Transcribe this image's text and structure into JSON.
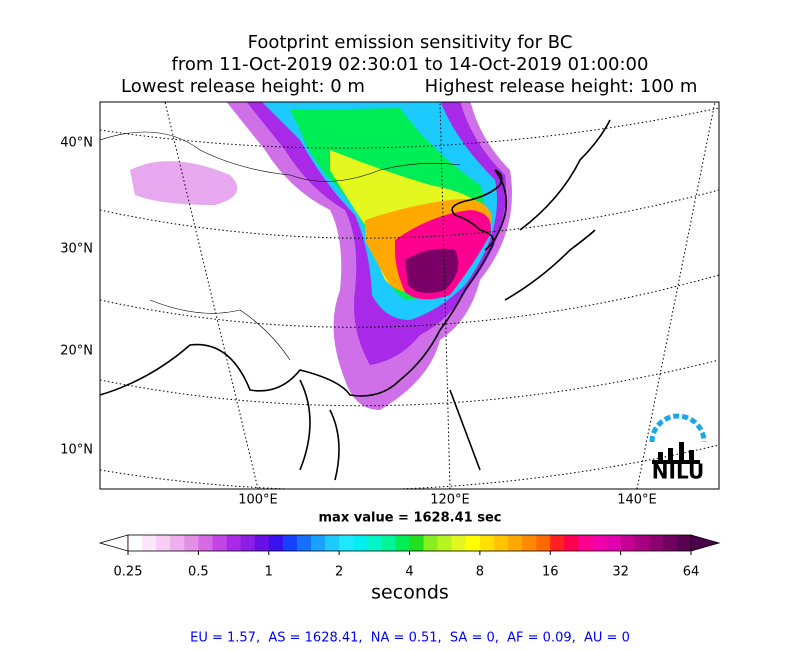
{
  "title": [
    "Footprint emission sensitivity for BC",
    "from 11-Oct-2019 02:30:01 to 14-Oct-2019 01:00:00"
  ],
  "release": {
    "lowest": "Lowest release height: 0 m",
    "highest": "Highest release height: 100 m"
  },
  "map": {
    "lat_labels": [
      "40°N",
      "30°N",
      "20°N",
      "10°N"
    ],
    "lon_labels": [
      "100°E",
      "120°E",
      "140°E"
    ],
    "max_value_label": "max value = 1628.41 sec",
    "logo": "NILU"
  },
  "colorbar": {
    "ticks": [
      0.25,
      0.5,
      1,
      2,
      4,
      8,
      16,
      32,
      64
    ],
    "lim": [
      0.25,
      64
    ],
    "log_scale": true,
    "label": "seconds",
    "colors": [
      "#ffffff",
      "#fde6fb",
      "#f7cdf5",
      "#eeb0ef",
      "#e38fe8",
      "#d66ae4",
      "#c445e6",
      "#a82ae8",
      "#8c1ee8",
      "#6a10e6",
      "#3a10f0",
      "#1440ff",
      "#1670ff",
      "#1aa0ff",
      "#1ccaff",
      "#1ee8ff",
      "#00f0f0",
      "#00f5c8",
      "#00f598",
      "#00ee55",
      "#20e020",
      "#88ee20",
      "#b8f520",
      "#e4f820",
      "#ffff00",
      "#ffe000",
      "#ffc400",
      "#ffa800",
      "#ff8a00",
      "#ff6a00",
      "#ff2020",
      "#ff0050",
      "#ff0090",
      "#f000a8",
      "#e000b0",
      "#c40090",
      "#a80080",
      "#8c0070",
      "#700060",
      "#5a0050"
    ],
    "under_color": "#ffffff",
    "over_color": "#4a004a"
  },
  "footer": "EU = 1.57,  AS = 1628.41,  NA = 0.51,  SA = 0,  AF = 0.09,  AU = 0"
}
